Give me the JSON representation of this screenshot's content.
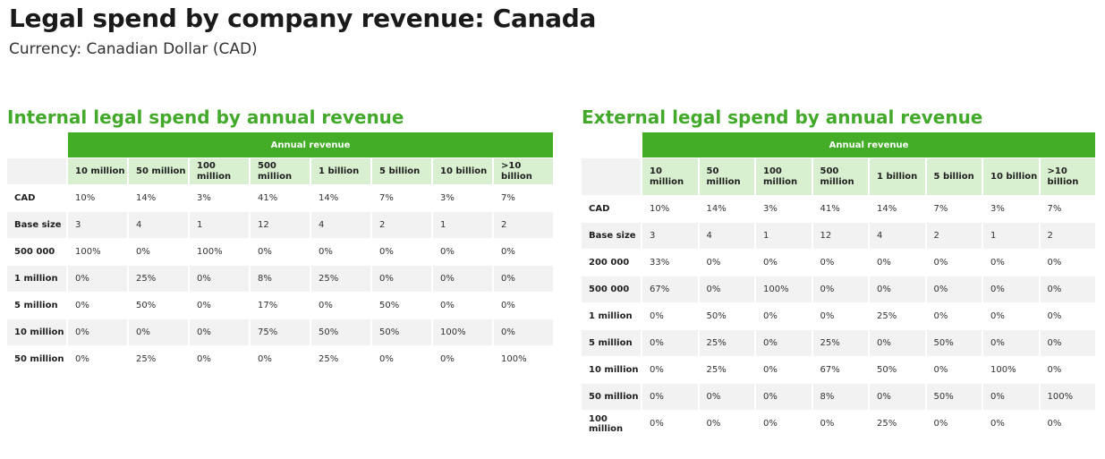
{
  "page": {
    "title": "Legal spend by company revenue: Canada",
    "subtitle": "Currency: Canadian Dollar (CAD)"
  },
  "colors": {
    "accent_green": "#43a92a",
    "header_bg": "#43ad28",
    "subheader_bg": "#d8f0d0",
    "row_shade": "#f2f2f2"
  },
  "internal": {
    "title": "Internal legal spend by annual revenue",
    "header": "Annual revenue",
    "columns": [
      "10 million",
      "50 million",
      "100 million",
      "500 million",
      "1 billion",
      "5 billion",
      "10 billion",
      ">10 billion"
    ],
    "rows": [
      {
        "label": "CAD",
        "values": [
          "10%",
          "14%",
          "3%",
          "41%",
          "14%",
          "7%",
          "3%",
          "7%"
        ]
      },
      {
        "label": "Base size",
        "values": [
          "3",
          "4",
          "1",
          "12",
          "4",
          "2",
          "1",
          "2"
        ]
      },
      {
        "label": "500 000",
        "values": [
          "100%",
          "0%",
          "100%",
          "0%",
          "0%",
          "0%",
          "0%",
          "0%"
        ]
      },
      {
        "label": "1 million",
        "values": [
          "0%",
          "25%",
          "0%",
          "8%",
          "25%",
          "0%",
          "0%",
          "0%"
        ]
      },
      {
        "label": "5 million",
        "values": [
          "0%",
          "50%",
          "0%",
          "17%",
          "0%",
          "50%",
          "0%",
          "0%"
        ]
      },
      {
        "label": "10 million",
        "values": [
          "0%",
          "0%",
          "0%",
          "75%",
          "50%",
          "50%",
          "100%",
          "0%"
        ]
      },
      {
        "label": "50 million",
        "values": [
          "0%",
          "25%",
          "0%",
          "0%",
          "25%",
          "0%",
          "0%",
          "100%"
        ]
      }
    ]
  },
  "external": {
    "title": "External legal spend by annual revenue",
    "header": "Annual revenue",
    "columns": [
      "10 million",
      "50 million",
      "100 million",
      "500 million",
      "1 billion",
      "5 billion",
      "10 billion",
      ">10 billion"
    ],
    "rows": [
      {
        "label": "CAD",
        "values": [
          "10%",
          "14%",
          "3%",
          "41%",
          "14%",
          "7%",
          "3%",
          "7%"
        ]
      },
      {
        "label": "Base size",
        "values": [
          "3",
          "4",
          "1",
          "12",
          "4",
          "2",
          "1",
          "2"
        ]
      },
      {
        "label": "200 000",
        "values": [
          "33%",
          "0%",
          "0%",
          "0%",
          "0%",
          "0%",
          "0%",
          "0%"
        ]
      },
      {
        "label": "500 000",
        "values": [
          "67%",
          "0%",
          "100%",
          "0%",
          "0%",
          "0%",
          "0%",
          "0%"
        ]
      },
      {
        "label": "1 million",
        "values": [
          "0%",
          "50%",
          "0%",
          "0%",
          "25%",
          "0%",
          "0%",
          "0%"
        ]
      },
      {
        "label": "5 million",
        "values": [
          "0%",
          "25%",
          "0%",
          "25%",
          "0%",
          "50%",
          "0%",
          "0%"
        ]
      },
      {
        "label": "10 million",
        "values": [
          "0%",
          "25%",
          "0%",
          "67%",
          "50%",
          "0%",
          "100%",
          "0%"
        ]
      },
      {
        "label": "50 million",
        "values": [
          "0%",
          "0%",
          "0%",
          "8%",
          "0%",
          "50%",
          "0%",
          "100%"
        ]
      },
      {
        "label": "100 million",
        "values": [
          "0%",
          "0%",
          "0%",
          "0%",
          "25%",
          "0%",
          "0%",
          "0%"
        ]
      }
    ]
  }
}
